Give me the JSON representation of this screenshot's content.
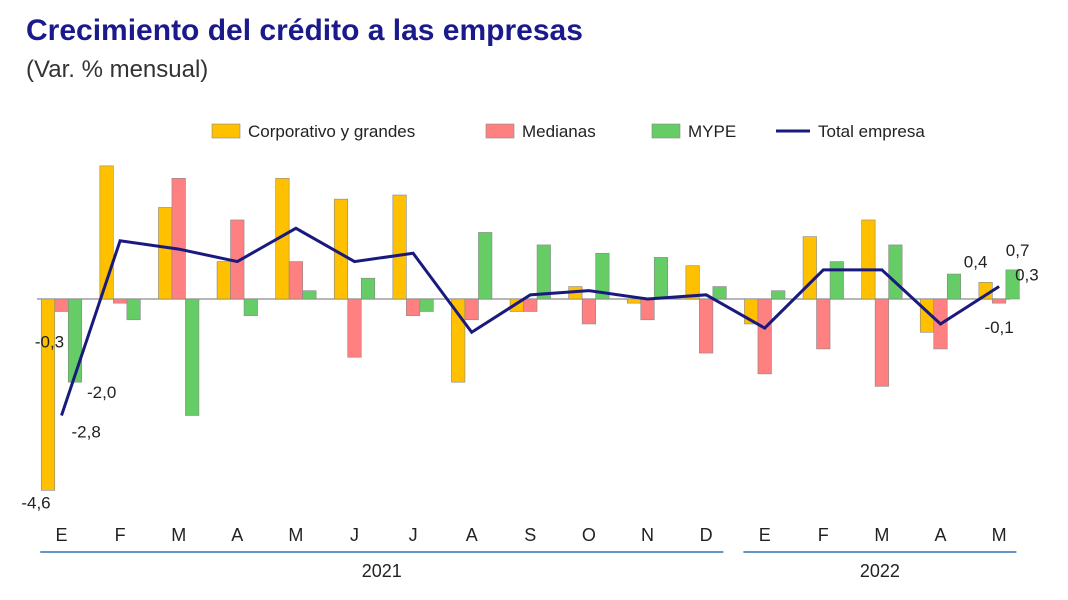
{
  "header": {
    "title": "Crecimiento del crédito a las empresas",
    "subtitle": "(Var. % mensual)"
  },
  "colors": {
    "corporativo": "#ffc000",
    "medianas": "#ff8080",
    "mype": "#66cc66",
    "total": "#1a1a7e",
    "bar_edge": "#888888",
    "axis_line": "#8c8c8c",
    "year_line": "#2e74b5"
  },
  "chart_data": {
    "type": "bar",
    "title": "Crecimiento del crédito a las empresas",
    "subtitle": "(Var. % mensual)",
    "categories": [
      "E",
      "F",
      "M",
      "A",
      "M",
      "J",
      "J",
      "A",
      "S",
      "O",
      "N",
      "D",
      "E",
      "F",
      "M",
      "A",
      "M"
    ],
    "years": [
      {
        "label": "2021",
        "from": 0,
        "to": 11
      },
      {
        "label": "2022",
        "from": 12,
        "to": 16
      }
    ],
    "ylim": [
      -5,
      3.5
    ],
    "grid": false,
    "legend_position": "top",
    "series": [
      {
        "name": "Corporativo y grandes",
        "type": "bar",
        "color_key": "corporativo",
        "values": [
          -4.6,
          3.2,
          2.2,
          0.9,
          2.9,
          2.4,
          2.5,
          -2.0,
          -0.3,
          0.3,
          -0.1,
          0.8,
          -0.6,
          1.5,
          1.9,
          -0.8,
          0.4
        ]
      },
      {
        "name": "Medianas",
        "type": "bar",
        "color_key": "medianas",
        "values": [
          -0.3,
          -0.1,
          2.9,
          1.9,
          0.9,
          -1.4,
          -0.4,
          -0.5,
          -0.3,
          -0.6,
          -0.5,
          -1.3,
          -1.8,
          -1.2,
          -2.1,
          -1.2,
          -0.1
        ]
      },
      {
        "name": "MYPE",
        "type": "bar",
        "color_key": "mype",
        "values": [
          -2.0,
          -0.5,
          -2.8,
          -0.4,
          0.2,
          0.5,
          -0.3,
          1.6,
          1.3,
          1.1,
          1.0,
          0.3,
          0.2,
          0.9,
          1.3,
          0.6,
          0.7
        ]
      },
      {
        "name": "Total empresa",
        "type": "line",
        "color_key": "total",
        "values": [
          -2.8,
          1.4,
          1.2,
          0.9,
          1.7,
          0.9,
          1.1,
          -0.8,
          0.1,
          0.2,
          0.0,
          0.1,
          -0.7,
          0.7,
          0.7,
          -0.6,
          0.3
        ]
      }
    ],
    "data_labels": [
      {
        "series": "Corporativo y grandes",
        "index": 0,
        "text": "-4,6"
      },
      {
        "series": "Medianas",
        "index": 0,
        "text": "-0,3"
      },
      {
        "series": "MYPE",
        "index": 0,
        "text": "-2,0"
      },
      {
        "series": "Total empresa",
        "index": 0,
        "text": "-2,8"
      },
      {
        "series": "Corporativo y grandes",
        "index": 16,
        "text": "0,4"
      },
      {
        "series": "MYPE",
        "index": 16,
        "text": "0,7"
      },
      {
        "series": "Total empresa",
        "index": 16,
        "text": "0,3"
      },
      {
        "series": "Medianas",
        "index": 16,
        "text": "-0,1"
      }
    ]
  }
}
